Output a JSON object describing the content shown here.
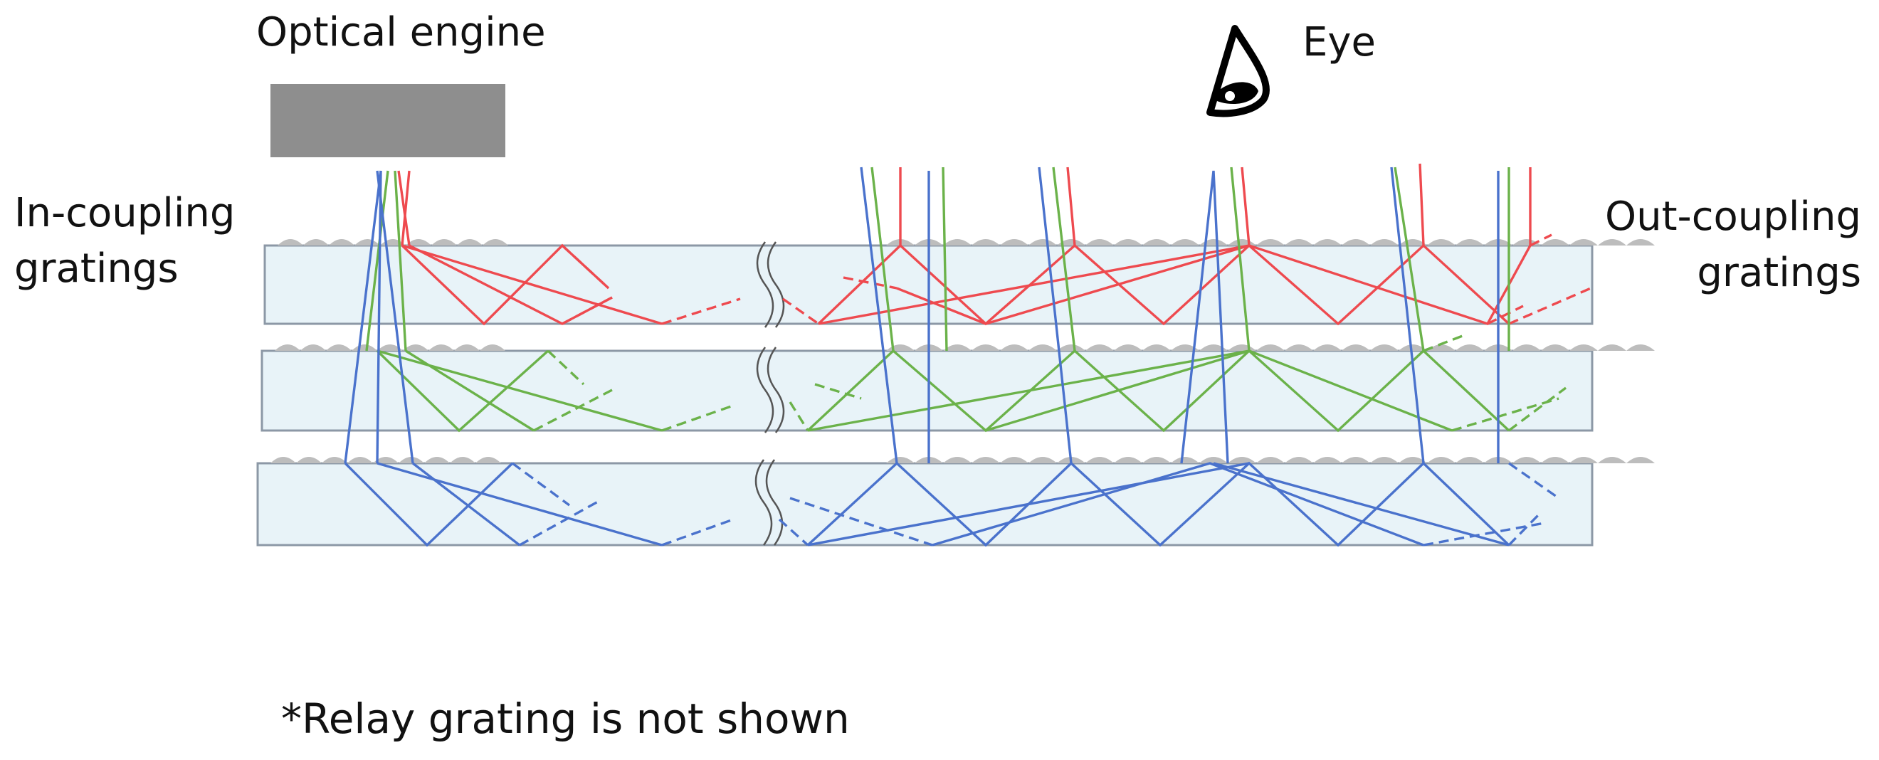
{
  "labels": {
    "optical_engine": "Optical engine",
    "eye": "Eye",
    "in_coupling_line1": "In-coupling",
    "in_coupling_line2": "gratings",
    "out_coupling_line1": "Out-coupling",
    "out_coupling_line2": "gratings",
    "note": "*Relay grating is not shown"
  },
  "colors": {
    "red": "#ee4a4f",
    "green": "#6bb24a",
    "blue": "#4a72cc",
    "waveguide_fill": "#e8f3f8",
    "engine_fill": "#8e8e8e",
    "grating": "#bdbdbd"
  },
  "icons": [
    "eye-icon"
  ]
}
